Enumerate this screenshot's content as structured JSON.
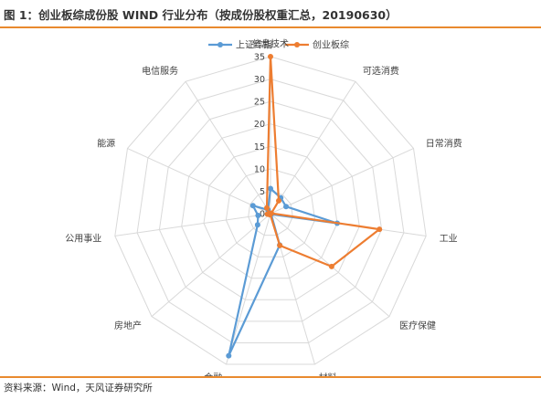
{
  "title": "图 1：创业板综成份股 WIND 行业分布（按成份股权重汇总，20190630）",
  "source": "资料来源：Wind，天风证券研究所",
  "chart_data": {
    "type": "radar",
    "categories": [
      "信息技术",
      "可选消费",
      "日常消费",
      "工业",
      "医疗保健",
      "材料",
      "金融",
      "房地产",
      "公用事业",
      "能源",
      "电信服务"
    ],
    "rlim": [
      0,
      35
    ],
    "ticks": [
      0,
      5,
      10,
      15,
      20,
      25,
      30,
      35
    ],
    "grid": true,
    "legend_position": "top",
    "series": [
      {
        "name": "上证综指",
        "color": "#5b9bd5",
        "values": [
          5.6,
          4.2,
          3.8,
          15.0,
          0.2,
          7.3,
          33.0,
          3.8,
          2.8,
          4.3,
          1.0
        ]
      },
      {
        "name": "创业板综",
        "color": "#ed7d31",
        "values": [
          35.0,
          3.4,
          0.2,
          24.5,
          18.0,
          7.4,
          0.2,
          0.3,
          0.7,
          0.3,
          1.5
        ]
      }
    ]
  }
}
